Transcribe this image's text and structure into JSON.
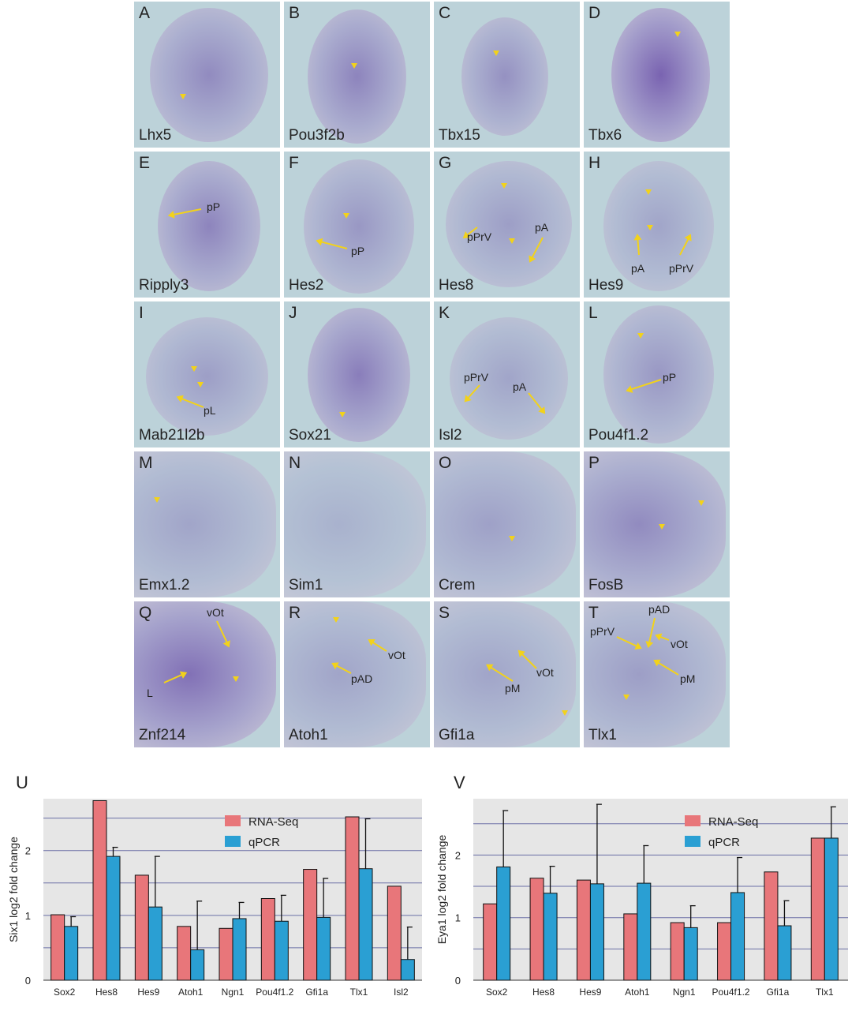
{
  "panels": [
    {
      "letter": "A",
      "gene": "Lhx5",
      "annotations": []
    },
    {
      "letter": "B",
      "gene": "Pou3f2b",
      "annotations": []
    },
    {
      "letter": "C",
      "gene": "Tbx15",
      "annotations": []
    },
    {
      "letter": "D",
      "gene": "Tbx6",
      "annotations": []
    },
    {
      "letter": "E",
      "gene": "Ripply3",
      "annotations": [
        "pP"
      ]
    },
    {
      "letter": "F",
      "gene": "Hes2",
      "annotations": [
        "pP"
      ]
    },
    {
      "letter": "G",
      "gene": "Hes8",
      "annotations": [
        "pPrV",
        "pA"
      ]
    },
    {
      "letter": "H",
      "gene": "Hes9",
      "annotations": [
        "pA",
        "pPrV"
      ]
    },
    {
      "letter": "I",
      "gene": "Mab21l2b",
      "annotations": [
        "pL"
      ]
    },
    {
      "letter": "J",
      "gene": "Sox21",
      "annotations": []
    },
    {
      "letter": "K",
      "gene": "Isl2",
      "annotations": [
        "pPrV",
        "pA"
      ]
    },
    {
      "letter": "L",
      "gene": "Pou4f1.2",
      "annotations": [
        "pP"
      ]
    },
    {
      "letter": "M",
      "gene": "Emx1.2",
      "annotations": []
    },
    {
      "letter": "N",
      "gene": "Sim1",
      "annotations": []
    },
    {
      "letter": "O",
      "gene": "Crem",
      "annotations": []
    },
    {
      "letter": "P",
      "gene": "FosB",
      "annotations": []
    },
    {
      "letter": "Q",
      "gene": "Znf214",
      "annotations": [
        "vOt",
        "L"
      ]
    },
    {
      "letter": "R",
      "gene": "Atoh1",
      "annotations": [
        "vOt",
        "pAD"
      ]
    },
    {
      "letter": "S",
      "gene": "Gfi1a",
      "annotations": [
        "vOt",
        "pM"
      ]
    },
    {
      "letter": "T",
      "gene": "Tlx1",
      "annotations": [
        "pAD",
        "pPrV",
        "vOt",
        "pM"
      ]
    }
  ],
  "colors": {
    "rnaseq": "#e8767a",
    "qpcr": "#2a9fd3",
    "plot_bg": "#e6e6e6",
    "grid": "#6b6fa6",
    "tile_bg": "#bcd2d9",
    "stain": "#5a3f8c",
    "arrow": "#f2d21b"
  },
  "chart_data": [
    {
      "panel_label": "U",
      "type": "bar",
      "ylabel": "Six1 log2 fold change",
      "ylim": [
        0,
        2.8
      ],
      "yticks": [
        0,
        1,
        2
      ],
      "legend": [
        "RNA-Seq",
        "qPCR"
      ],
      "legend_position": "top-right",
      "categories": [
        "Sox2",
        "Hes8",
        "Hes9",
        "Atoh1",
        "Ngn1",
        "Pou4f1.2",
        "Gfi1a",
        "Tlx1",
        "Isl2"
      ],
      "series": [
        {
          "name": "RNA-Seq",
          "values": [
            1.01,
            2.77,
            1.62,
            0.83,
            0.8,
            1.26,
            1.71,
            2.52,
            1.45
          ]
        },
        {
          "name": "qPCR",
          "values": [
            0.83,
            1.91,
            1.13,
            0.47,
            0.95,
            0.91,
            0.97,
            1.72,
            0.32
          ],
          "errors": [
            0.15,
            0.14,
            0.78,
            0.75,
            0.25,
            0.4,
            0.6,
            0.77,
            0.5
          ]
        }
      ]
    },
    {
      "panel_label": "V",
      "type": "bar",
      "ylabel": "Eya1 log2 fold change",
      "ylim": [
        0,
        2.9
      ],
      "yticks": [
        0,
        1,
        2
      ],
      "legend": [
        "RNA-Seq",
        "qPCR"
      ],
      "legend_position": "top-right",
      "categories": [
        "Sox2",
        "Hes8",
        "Hes9",
        "Atoh1",
        "Ngn1",
        "Pou4f1.2",
        "Gfi1a",
        "Tlx1"
      ],
      "series": [
        {
          "name": "RNA-Seq",
          "values": [
            1.22,
            1.63,
            1.6,
            1.06,
            0.92,
            0.92,
            1.73,
            2.27
          ],
          "errors": null
        },
        {
          "name": "qPCR",
          "values": [
            1.81,
            1.39,
            1.54,
            1.55,
            0.84,
            1.4,
            0.87,
            2.27
          ],
          "errors": [
            0.9,
            0.43,
            1.27,
            0.6,
            0.35,
            0.56,
            0.4,
            0.5
          ]
        }
      ]
    }
  ]
}
